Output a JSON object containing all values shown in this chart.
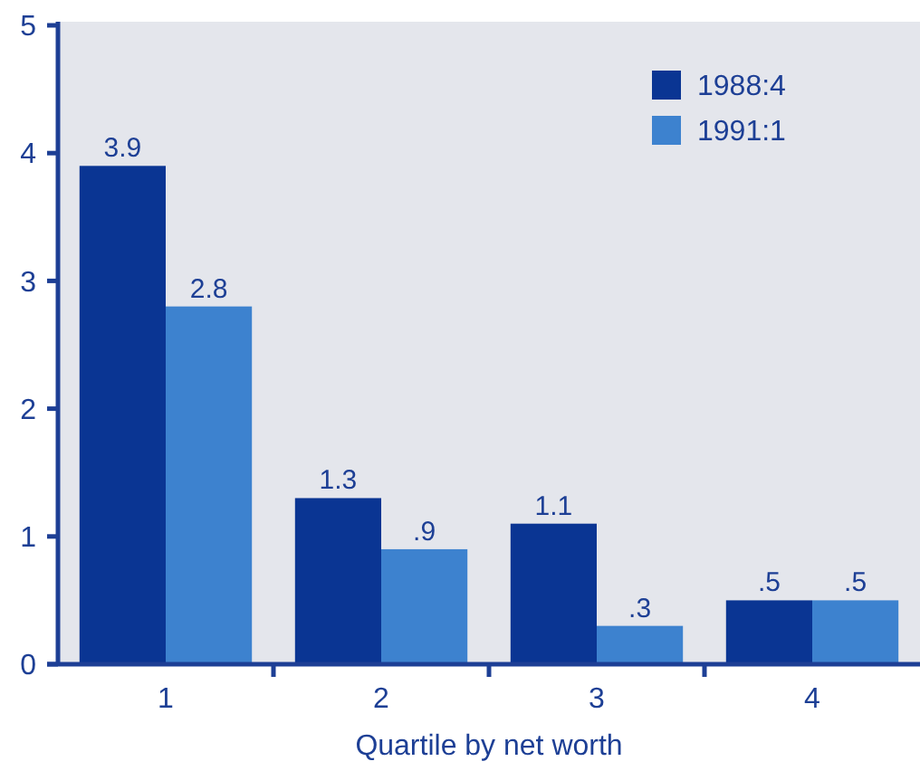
{
  "chart_data": {
    "type": "bar",
    "xlabel": "Quartile by net worth",
    "categories": [
      "1",
      "2",
      "3",
      "4"
    ],
    "series": [
      {
        "name": "1988:4",
        "color": "#0a3593",
        "values": [
          3.9,
          1.3,
          1.1,
          0.5
        ],
        "value_labels": [
          "3.9",
          "1.3",
          "1.1",
          ".5"
        ]
      },
      {
        "name": "1991:1",
        "color": "#3d82cf",
        "values": [
          2.8,
          0.9,
          0.3,
          0.5
        ],
        "value_labels": [
          "2.8",
          ".9",
          ".3",
          ".5"
        ]
      }
    ],
    "ylim": [
      0,
      5
    ],
    "yticks": [
      0,
      1,
      2,
      3,
      4,
      5
    ],
    "grid": false,
    "legend": "top right"
  }
}
